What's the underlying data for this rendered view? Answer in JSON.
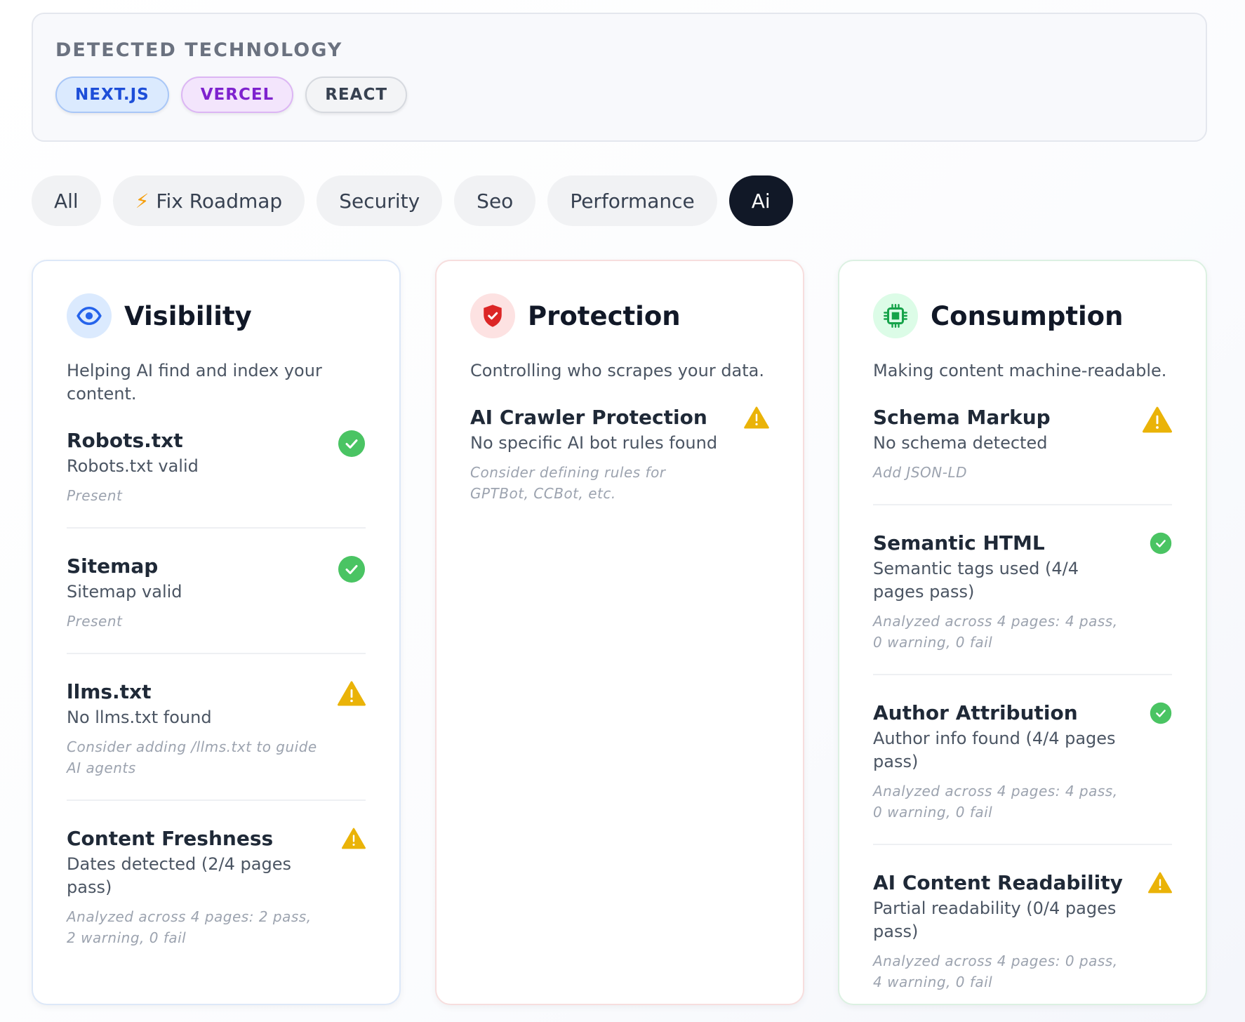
{
  "tech": {
    "title": "DETECTED TECHNOLOGY",
    "badges": [
      "NEXT.JS",
      "VERCEL",
      "REACT"
    ]
  },
  "tabs": [
    {
      "label": "All",
      "icon": ""
    },
    {
      "label": "Fix Roadmap",
      "icon": "lightning-icon"
    },
    {
      "label": "Security",
      "icon": ""
    },
    {
      "label": "Seo",
      "icon": ""
    },
    {
      "label": "Performance",
      "icon": ""
    },
    {
      "label": "Ai",
      "icon": "",
      "active": true
    }
  ],
  "cards": {
    "visibility": {
      "title": "Visibility",
      "icon": "eye-icon",
      "description": "Helping AI find and index your content.",
      "items": [
        {
          "title": "Robots.txt",
          "status": "Robots.txt valid",
          "detail": "Present",
          "result": "pass"
        },
        {
          "title": "Sitemap",
          "status": "Sitemap valid",
          "detail": "Present",
          "result": "pass"
        },
        {
          "title": "llms.txt",
          "status": "No llms.txt found",
          "detail": "Consider adding /llms.txt to guide AI agents",
          "result": "warning"
        },
        {
          "title": "Content Freshness",
          "status": "Dates detected (2/4 pages pass)",
          "detail": "Analyzed across 4 pages: 2 pass, 2 warning, 0 fail",
          "result": "warning"
        }
      ]
    },
    "protection": {
      "title": "Protection",
      "icon": "shield-icon",
      "description": "Controlling who scrapes your data.",
      "items": [
        {
          "title": "AI Crawler Protection",
          "status": "No specific AI bot rules found",
          "detail": "Consider defining rules for GPTBot, CCBot, etc.",
          "result": "warning"
        }
      ]
    },
    "consumption": {
      "title": "Consumption",
      "icon": "chip-icon",
      "description": "Making content machine-readable.",
      "items": [
        {
          "title": "Schema Markup",
          "status": "No schema detected",
          "detail": "Add JSON-LD",
          "result": "warning"
        },
        {
          "title": "Semantic HTML",
          "status": "Semantic tags used (4/4 pages pass)",
          "detail": "Analyzed across 4 pages: 4 pass, 0 warning, 0 fail",
          "result": "pass"
        },
        {
          "title": "Author Attribution",
          "status": "Author info found (4/4 pages pass)",
          "detail": "Analyzed across 4 pages: 4 pass, 0 warning, 0 fail",
          "result": "pass"
        },
        {
          "title": "AI Content Readability",
          "status": "Partial readability (0/4 pages pass)",
          "detail": "Analyzed across 4 pages: 0 pass, 4 warning, 0 fail",
          "result": "warning"
        }
      ]
    }
  },
  "colors": {
    "pass": "#4ac463",
    "warning": "#eab308",
    "active_tab": "#111827"
  }
}
